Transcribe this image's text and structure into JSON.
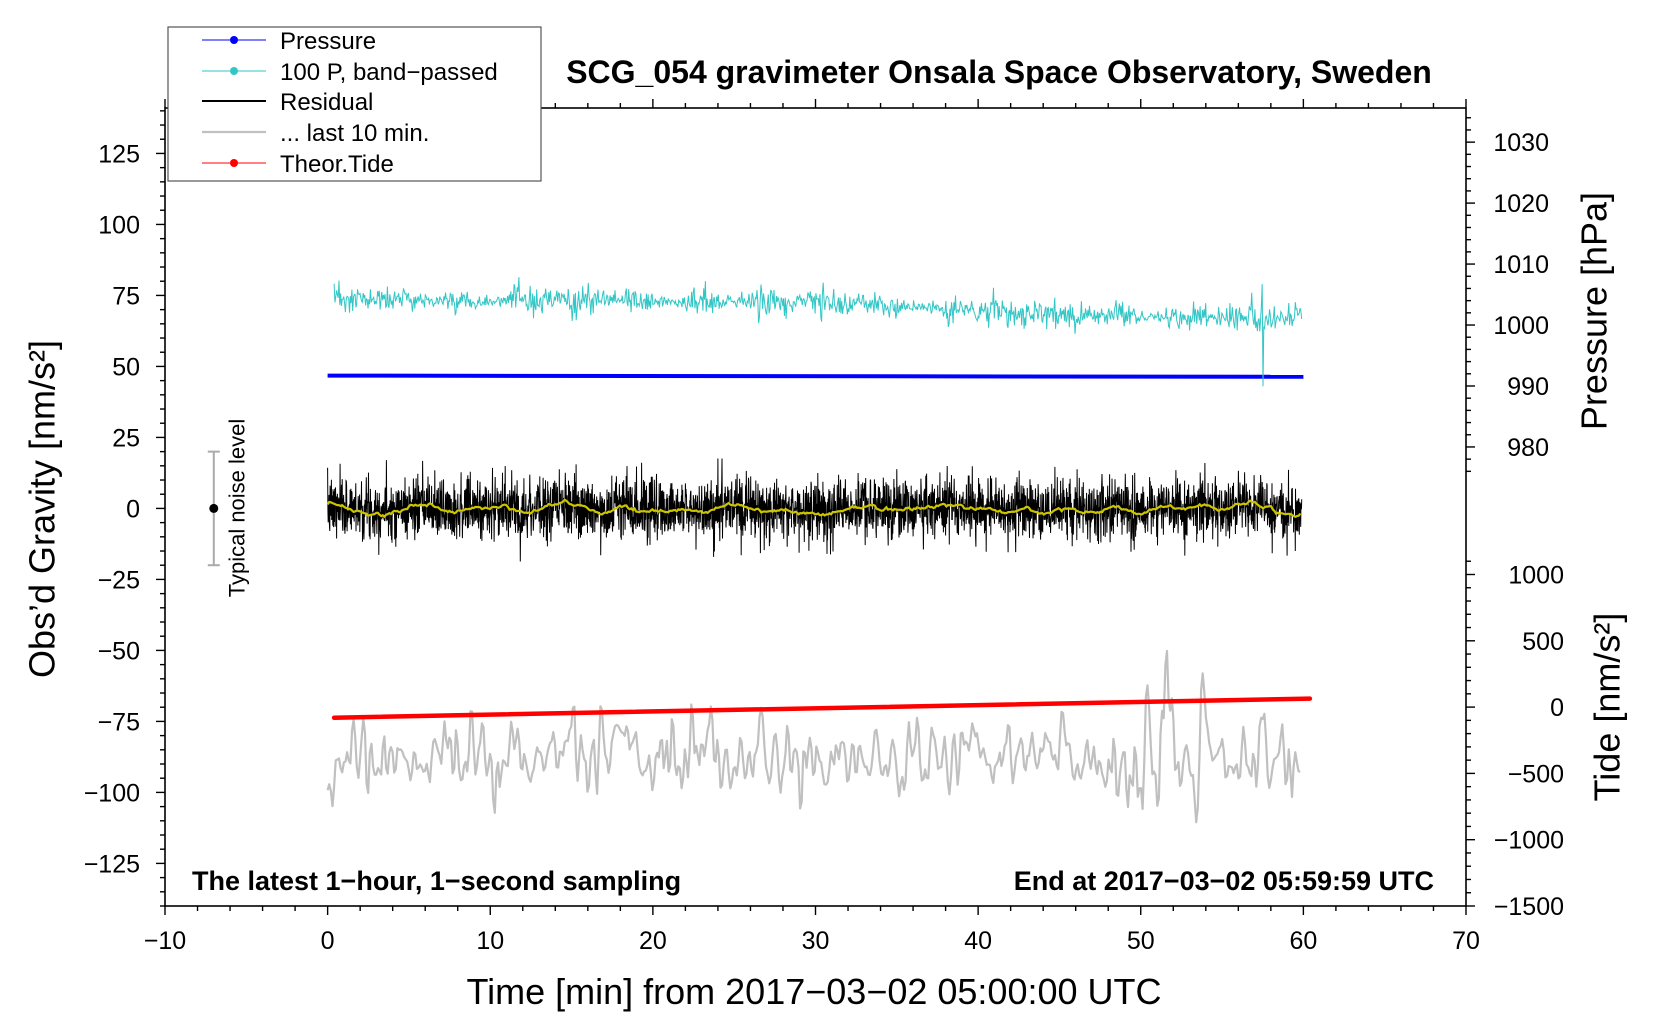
{
  "chart_data": {
    "type": "line",
    "title": "SCG_054 gravimeter Onsala Space Observatory, Sweden",
    "xlabel": "Time [min] from 2017−03−02 05:00:00 UTC",
    "ylabel": "Obs’d Gravity [nm/s²]",
    "xlim": [
      -10,
      70
    ],
    "xticks": [
      -10,
      0,
      10,
      20,
      30,
      40,
      50,
      60,
      70
    ],
    "xtick_labels": [
      "−10",
      "0",
      "10",
      "20",
      "30",
      "40",
      "50",
      "60",
      "70"
    ],
    "xminor_step": 2,
    "ylim": [
      -140,
      141
    ],
    "yticks": [
      -125,
      -100,
      -75,
      -50,
      -25,
      0,
      25,
      50,
      75,
      100,
      125
    ],
    "ytick_labels": [
      "−125",
      "−100",
      "−75",
      "−50",
      "−25",
      "0",
      "25",
      "50",
      "75",
      "100",
      "125"
    ],
    "yminor_step": 5,
    "pressure_axis": {
      "label": "Pressure [hPa]",
      "lim": [
        904.7,
        1035.6
      ],
      "ticks": [
        980,
        990,
        1000,
        1010,
        1020,
        1030
      ],
      "tick_labels": [
        "980",
        "990",
        "1000",
        "1010",
        "1020",
        "1030"
      ],
      "minor_step": 2,
      "minor_range": [
        976,
        1034
      ]
    },
    "tide_axis": {
      "label": "Tide [nm/s²]",
      "lim": [
        -1500,
        4518
      ],
      "ticks": [
        -1500,
        -1000,
        -500,
        0,
        500,
        1000
      ],
      "tick_labels": [
        "−1500",
        "−1000",
        "−500",
        "0",
        "500",
        "1000"
      ],
      "minor_step": 100,
      "minor_range": [
        -1500,
        1100
      ]
    },
    "grid": false,
    "legend_position": "top-left",
    "series": {
      "pressure": {
        "label": "Pressure",
        "color": "#0000ff",
        "x": [
          0,
          60
        ],
        "y": [
          991.7,
          991.5
        ]
      },
      "bandpassed": {
        "label": "100 P, band−passed",
        "color": "#33c6c6",
        "x_range": [
          0.4,
          59.9
        ],
        "samples": 1200,
        "level": {
          "x": [
            0,
            30,
            45,
            60
          ],
          "y": [
            73.5,
            72.5,
            68,
            67
          ]
        },
        "noise_sigma": 2.0,
        "spike": {
          "x": 57.5,
          "max": 79,
          "min": 43
        }
      },
      "residual": {
        "label": "Residual",
        "color": "#000000",
        "x_range": [
          0,
          59.9
        ],
        "samples": 3600,
        "level": 0,
        "noise_sigma": 5.2
      },
      "residual_smooth": {
        "color": "#cdc400",
        "x_range": [
          0,
          59.9
        ],
        "level": 0,
        "noise_sigma": 1.1
      },
      "last10": {
        "label": "... last 10 min.",
        "color": "#c0c0c0",
        "x_range": [
          0,
          59.8
        ],
        "samples": 600,
        "level": -88,
        "noise_sigma": 7
      },
      "tide": {
        "label": "Theor.Tide",
        "color": "#ff0000",
        "x": [
          0.4,
          60.4
        ],
        "y": [
          -80,
          64
        ]
      }
    },
    "noise_level": {
      "label": "Typical noise level",
      "range": [
        -20,
        20
      ],
      "color": "#aaaaaa"
    },
    "annotations": {
      "left": "The latest 1−hour, 1−second sampling",
      "right": "End at 2017−03−02 05:59:59 UTC"
    }
  }
}
